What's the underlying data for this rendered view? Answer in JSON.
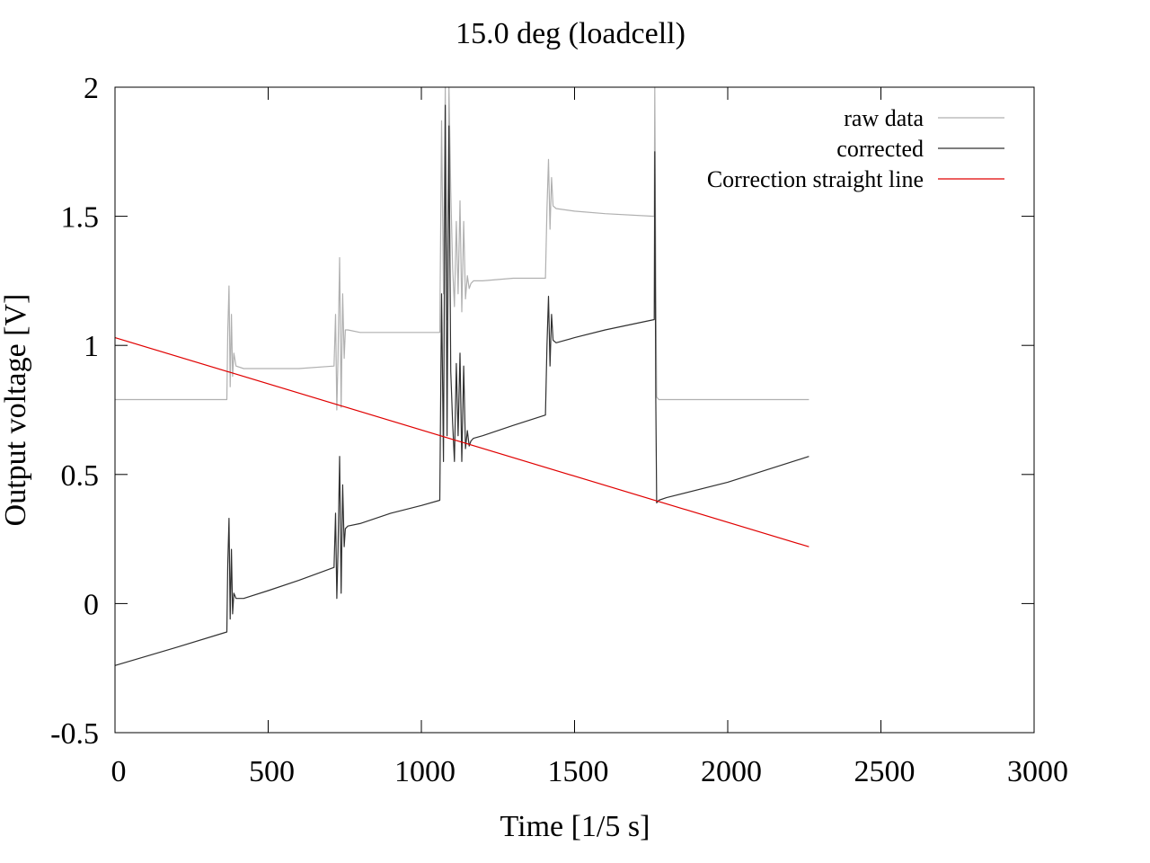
{
  "chart_data": {
    "type": "line",
    "title": "15.0 deg (loadcell)",
    "xlabel": "Time [1/5 s]",
    "ylabel": "Output voltage [V]",
    "xlim": [
      0,
      3000
    ],
    "ylim": [
      -0.5,
      2
    ],
    "x_ticks": [
      0,
      500,
      1000,
      1500,
      2000,
      2500,
      3000
    ],
    "y_ticks": [
      -0.5,
      0,
      0.5,
      1,
      1.5,
      2
    ],
    "x_tick_labels": [
      "0",
      "500",
      "1000",
      "1500",
      "2000",
      "2500",
      "3000"
    ],
    "y_tick_labels": [
      "-0.5",
      "0",
      "0.5",
      "1",
      "1.5",
      "2"
    ],
    "grid": false,
    "legend_position": "top-right",
    "series": [
      {
        "name": "raw data",
        "color": "#b0b0b0",
        "x": [
          0,
          200,
          365,
          368,
          372,
          376,
          380,
          384,
          388,
          395,
          420,
          500,
          600,
          715,
          720,
          724,
          728,
          733,
          738,
          743,
          748,
          752,
          760,
          800,
          900,
          1000,
          1060,
          1066,
          1072,
          1078,
          1084,
          1090,
          1096,
          1102,
          1108,
          1114,
          1120,
          1126,
          1132,
          1138,
          1144,
          1150,
          1156,
          1162,
          1170,
          1200,
          1300,
          1405,
          1410,
          1415,
          1420,
          1425,
          1430,
          1440,
          1500,
          1600,
          1760,
          1762,
          1765,
          1768,
          1775,
          1800,
          2000,
          2265
        ],
        "y": [
          0.79,
          0.79,
          0.79,
          1.05,
          1.23,
          0.84,
          1.12,
          0.88,
          0.97,
          0.92,
          0.91,
          0.91,
          0.91,
          0.92,
          1.12,
          0.75,
          0.95,
          1.34,
          0.76,
          1.2,
          0.95,
          1.06,
          1.06,
          1.05,
          1.05,
          1.05,
          1.05,
          1.87,
          1.2,
          2.0,
          1.1,
          2.0,
          1.6,
          1.3,
          1.15,
          1.48,
          1.2,
          1.56,
          1.13,
          1.48,
          1.18,
          1.27,
          1.22,
          1.24,
          1.25,
          1.25,
          1.26,
          1.26,
          1.53,
          1.72,
          1.45,
          1.65,
          1.54,
          1.53,
          1.52,
          1.51,
          1.5,
          2.0,
          1.3,
          0.8,
          0.79,
          0.79,
          0.79,
          0.79
        ]
      },
      {
        "name": "corrected",
        "color": "#303030",
        "x": [
          0,
          200,
          365,
          368,
          372,
          376,
          380,
          384,
          388,
          395,
          420,
          500,
          600,
          715,
          720,
          724,
          728,
          733,
          738,
          743,
          748,
          752,
          760,
          800,
          900,
          1000,
          1060,
          1066,
          1072,
          1078,
          1084,
          1090,
          1096,
          1102,
          1108,
          1114,
          1120,
          1126,
          1132,
          1138,
          1144,
          1150,
          1156,
          1162,
          1170,
          1200,
          1300,
          1405,
          1410,
          1415,
          1420,
          1425,
          1430,
          1440,
          1500,
          1600,
          1760,
          1762,
          1765,
          1768,
          1775,
          1800,
          2000,
          2265
        ],
        "y": [
          -0.24,
          -0.17,
          -0.11,
          0.15,
          0.33,
          -0.06,
          0.21,
          -0.04,
          0.04,
          0.02,
          0.02,
          0.05,
          0.09,
          0.14,
          0.35,
          0.02,
          0.2,
          0.57,
          0.04,
          0.46,
          0.22,
          0.29,
          0.3,
          0.31,
          0.35,
          0.38,
          0.4,
          1.2,
          0.55,
          1.93,
          0.65,
          1.85,
          0.9,
          0.7,
          0.55,
          0.93,
          0.65,
          0.97,
          0.55,
          0.92,
          0.6,
          0.67,
          0.61,
          0.63,
          0.64,
          0.65,
          0.69,
          0.73,
          1.0,
          1.19,
          0.92,
          1.12,
          1.02,
          1.01,
          1.03,
          1.06,
          1.1,
          1.75,
          0.8,
          0.39,
          0.4,
          0.41,
          0.47,
          0.57
        ]
      },
      {
        "name": "Correction straight line",
        "color": "#e00000",
        "x": [
          0,
          2265
        ],
        "y": [
          1.03,
          0.22
        ]
      }
    ]
  }
}
